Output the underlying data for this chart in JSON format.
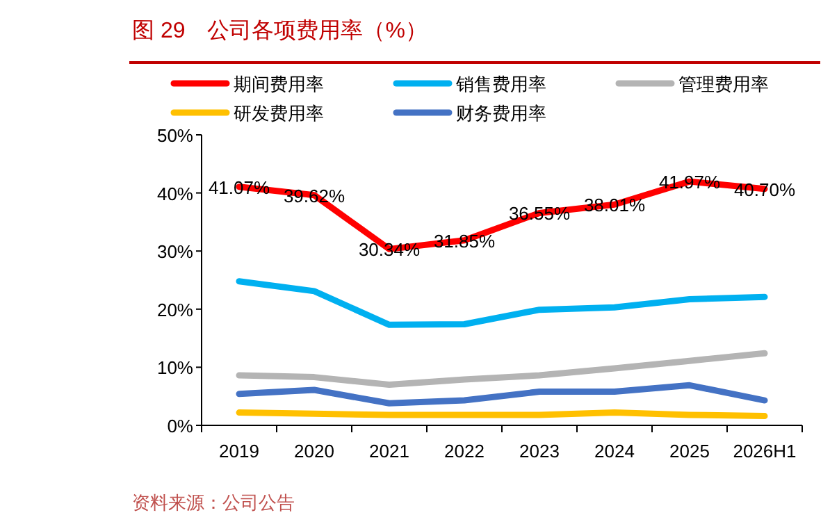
{
  "chart_data": {
    "type": "line",
    "title": "图 29　公司各项费用率（%）",
    "annotations": [
      "资料来源：公司公告"
    ],
    "categories": [
      "2019",
      "2020",
      "2021",
      "2022",
      "2023",
      "2024",
      "2025",
      "2026H1"
    ],
    "ylim": [
      0,
      50
    ],
    "yticks": [
      {
        "value": 0,
        "label": "0%"
      },
      {
        "value": 10,
        "label": "10%"
      },
      {
        "value": 20,
        "label": "20%"
      },
      {
        "value": 30,
        "label": "30%"
      },
      {
        "value": 40,
        "label": "40%"
      },
      {
        "value": 50,
        "label": "50%"
      }
    ],
    "grid": false,
    "legend": "top",
    "marker": "none",
    "line_style": "solid",
    "series": [
      {
        "name": "期间费用率",
        "color": "#ff0000",
        "values": [
          41.07,
          39.62,
          30.34,
          31.85,
          36.55,
          38.01,
          41.97,
          40.7
        ],
        "value_labels": [
          "41.07%",
          "39.62%",
          "30.34%",
          "31.85%",
          "36.55%",
          "38.01%",
          "41.97%",
          "40.70%"
        ]
      },
      {
        "name": "销售费用率",
        "color": "#00b0f0",
        "values": [
          24.8,
          23.1,
          17.3,
          17.4,
          19.9,
          20.3,
          21.7,
          22.1
        ]
      },
      {
        "name": "管理费用率",
        "color": "#b4b4b4",
        "values": [
          8.6,
          8.3,
          7.0,
          7.9,
          8.6,
          9.8,
          11.1,
          12.4
        ]
      },
      {
        "name": "研发费用率",
        "color": "#ffc000",
        "values": [
          2.2,
          2.0,
          1.8,
          1.8,
          1.8,
          2.2,
          1.8,
          1.6
        ]
      },
      {
        "name": "财务费用率",
        "color": "#4472c4",
        "values": [
          5.4,
          6.1,
          3.8,
          4.3,
          5.8,
          5.8,
          6.9,
          4.3
        ]
      }
    ]
  }
}
